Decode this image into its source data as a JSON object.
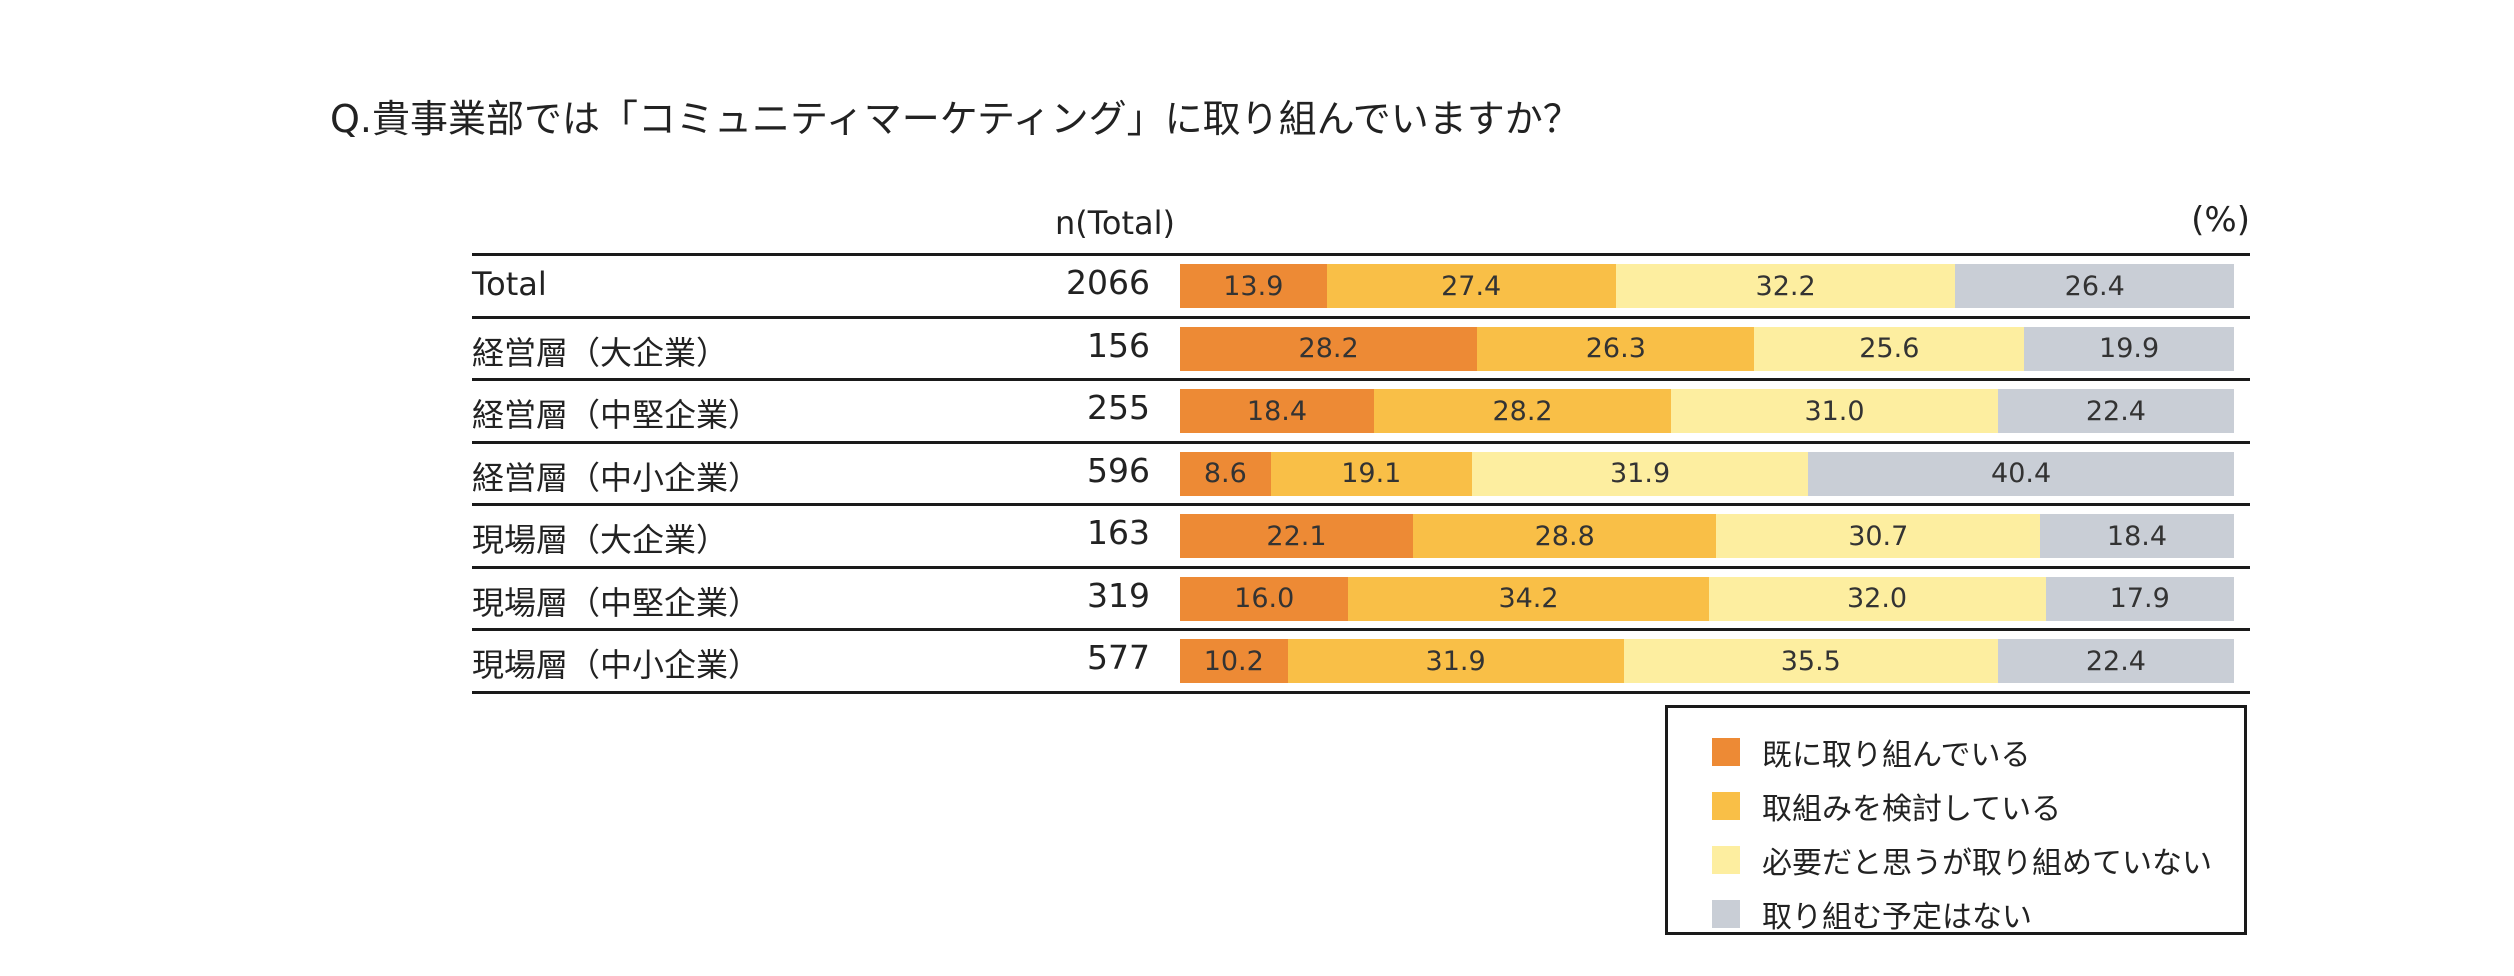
{
  "title": "Q.貴事業部では「コミュニティマーケティング」に取り組んでいますか？",
  "header": {
    "n_label": "n(Total)",
    "unit": "(%)"
  },
  "legend": [
    {
      "label": "既に取り組んでいる",
      "color": "#ED8A35"
    },
    {
      "label": "取組みを検討している",
      "color": "#F9BF47"
    },
    {
      "label": "必要だと思うが取り組めていない",
      "color": "#FDEEA0"
    },
    {
      "label": "取り組む予定はない",
      "color": "#C9CED6"
    }
  ],
  "chart_data": {
    "type": "bar",
    "orientation": "horizontal",
    "stacked": true,
    "title": "Q.貴事業部では「コミュニティマーケティング」に取り組んでいますか？",
    "unit": "%",
    "categories": [
      "Total",
      "経営層（大企業）",
      "経営層（中堅企業）",
      "経営層（中小企業）",
      "現場層（大企業）",
      "現場層（中堅企業）",
      "現場層（中小企業）"
    ],
    "n": [
      "2066",
      "156",
      "255",
      "596",
      "163",
      "319",
      "577"
    ],
    "series": [
      {
        "name": "既に取り組んでいる",
        "color": "#ED8A35",
        "values": [
          "13.9",
          "28.2",
          "18.4",
          "8.6",
          "22.1",
          "16.0",
          "10.2"
        ]
      },
      {
        "name": "取組みを検討している",
        "color": "#F9BF47",
        "values": [
          "27.4",
          "26.3",
          "28.2",
          "19.1",
          "28.8",
          "34.2",
          "31.9"
        ]
      },
      {
        "name": "必要だと思うが取り組めていない",
        "color": "#FDEEA0",
        "values": [
          "32.2",
          "25.6",
          "31.0",
          "31.9",
          "30.7",
          "32.0",
          "35.5"
        ]
      },
      {
        "name": "取り組む予定はない",
        "color": "#C9CED6",
        "values": [
          "26.4",
          "19.9",
          "22.4",
          "40.4",
          "18.4",
          "17.9",
          "22.4"
        ]
      }
    ],
    "xlim": [
      0,
      100
    ]
  }
}
